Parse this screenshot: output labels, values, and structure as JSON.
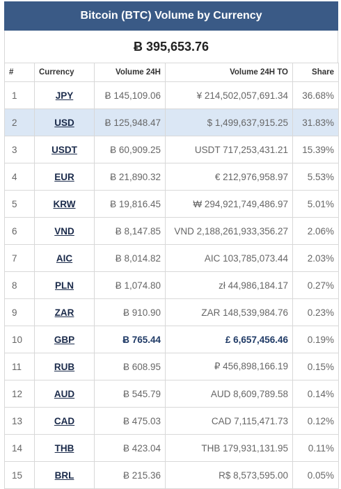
{
  "title": "Bitcoin (BTC) Volume by Currency",
  "total": "Ƀ 395,653.76",
  "headers": {
    "num": "#",
    "currency": "Currency",
    "volume": "Volume 24H",
    "volume_to": "Volume 24H TO",
    "share": "Share"
  },
  "rows": [
    {
      "num": "1",
      "currency": "JPY",
      "volume": "Ƀ 145,109.06",
      "volume_to": "¥ 214,502,057,691.34",
      "share": "36.68%"
    },
    {
      "num": "2",
      "currency": "USD",
      "volume": "Ƀ 125,948.47",
      "volume_to": "$ 1,499,637,915.25",
      "share": "31.83%"
    },
    {
      "num": "3",
      "currency": "USDT",
      "volume": "Ƀ 60,909.25",
      "volume_to": "USDT 717,253,431.21",
      "share": "15.39%"
    },
    {
      "num": "4",
      "currency": "EUR",
      "volume": "Ƀ 21,890.32",
      "volume_to": "€ 212,976,958.97",
      "share": "5.53%"
    },
    {
      "num": "5",
      "currency": "KRW",
      "volume": "Ƀ 19,816.45",
      "volume_to": "₩ 294,921,749,486.97",
      "share": "5.01%"
    },
    {
      "num": "6",
      "currency": "VND",
      "volume": "Ƀ 8,147.85",
      "volume_to": "VND 2,188,261,933,356.27",
      "share": "2.06%"
    },
    {
      "num": "7",
      "currency": "AIC",
      "volume": "Ƀ 8,014.82",
      "volume_to": "AIC 103,785,073.44",
      "share": "2.03%"
    },
    {
      "num": "8",
      "currency": "PLN",
      "volume": "Ƀ 1,074.80",
      "volume_to": "zł 44,986,184.17",
      "share": "0.27%"
    },
    {
      "num": "9",
      "currency": "ZAR",
      "volume": "Ƀ 910.90",
      "volume_to": "ZAR 148,539,984.76",
      "share": "0.23%"
    },
    {
      "num": "10",
      "currency": "GBP",
      "volume": "Ƀ 765.44",
      "volume_to": "£ 6,657,456.46",
      "share": "0.19%"
    },
    {
      "num": "11",
      "currency": "RUB",
      "volume": "Ƀ 608.95",
      "volume_to": "₽ 456,898,166.19",
      "share": "0.15%"
    },
    {
      "num": "12",
      "currency": "AUD",
      "volume": "Ƀ 545.79",
      "volume_to": "AUD 8,609,789.58",
      "share": "0.14%"
    },
    {
      "num": "13",
      "currency": "CAD",
      "volume": "Ƀ 475.03",
      "volume_to": "CAD 7,115,471.73",
      "share": "0.12%"
    },
    {
      "num": "14",
      "currency": "THB",
      "volume": "Ƀ 423.04",
      "volume_to": "THB 179,931,131.95",
      "share": "0.11%"
    },
    {
      "num": "15",
      "currency": "BRL",
      "volume": "Ƀ 215.36",
      "volume_to": "R$ 8,573,595.00",
      "share": "0.05%"
    }
  ],
  "colors": {
    "title_bg": "#3a5a86",
    "highlight_row": "#dbe7f5",
    "emphasis_text": "#1f3a66"
  }
}
